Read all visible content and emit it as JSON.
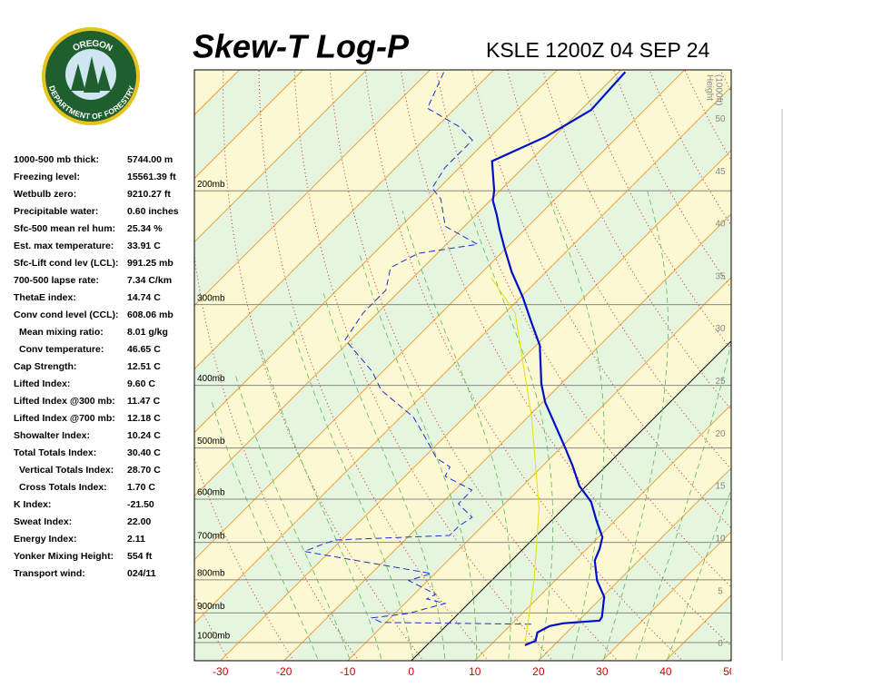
{
  "logo": {
    "top": "OREGON",
    "bottom": "DEPARTMENT OF FORESTRY"
  },
  "indices": {
    "rows": [
      [
        "1000-500 mb thick:",
        "5744.00 m"
      ],
      [
        "Freezing level:",
        "15561.39 ft"
      ],
      [
        "Wetbulb zero:",
        "9210.27 ft"
      ],
      [
        "Precipitable water:",
        "0.60 inches"
      ],
      [
        "Sfc-500 mean rel hum:",
        "25.34 %"
      ],
      [
        "Est. max temperature:",
        "33.91 C"
      ],
      [
        "Sfc-Lift cond lev (LCL):",
        "991.25 mb"
      ],
      [
        "700-500 lapse rate:",
        "7.34 C/km"
      ],
      [
        "ThetaE index:",
        "14.74 C"
      ],
      [
        "Conv cond level (CCL):",
        "608.06 mb"
      ],
      [
        "Mean mixing ratio:",
        "8.01 g/kg"
      ],
      [
        "Conv temperature:",
        "46.65 C"
      ],
      [
        "Cap Strength:",
        "12.51 C"
      ],
      [
        "Lifted Index:",
        "9.60 C"
      ],
      [
        "Lifted Index @300 mb:",
        "11.47 C"
      ],
      [
        "Lifted Index @700 mb:",
        "12.18 C"
      ],
      [
        "Showalter Index:",
        "10.24 C"
      ],
      [
        "Total Totals Index:",
        "30.40 C"
      ],
      [
        "Vertical Totals Index:",
        "28.70 C"
      ],
      [
        "Cross Totals Index:",
        "1.70 C"
      ],
      [
        "K Index:",
        "-21.50"
      ],
      [
        "Sweat Index:",
        "22.00"
      ],
      [
        "Energy Index:",
        "2.11"
      ],
      [
        "Yonker Mixing Height:",
        "554 ft"
      ],
      [
        "Transport wind:",
        "024/11"
      ]
    ]
  },
  "chart_data": {
    "type": "skewt",
    "title": "Skew-T Log-P",
    "subtitle": "KSLE 1200Z 04 SEP 24",
    "xlim": [
      -34.1,
      50.3
    ],
    "xticks": [
      -30,
      -20,
      -10,
      0,
      10,
      20,
      30,
      40,
      50
    ],
    "ylim": [
      1067,
      130
    ],
    "yscale": "log",
    "yticks": [
      {
        "value": 1000,
        "label": "1000mb"
      },
      {
        "value": 900,
        "label": "900mb"
      },
      {
        "value": 800,
        "label": "800mb"
      },
      {
        "value": 700,
        "label": "700mb"
      },
      {
        "value": 600,
        "label": "600mb"
      },
      {
        "value": 500,
        "label": "500mb"
      },
      {
        "value": 400,
        "label": "400mb"
      },
      {
        "value": 300,
        "label": "300mb"
      },
      {
        "value": 200,
        "label": "200mb"
      }
    ],
    "y2label": [
      "Height",
      "(1000ft)"
    ],
    "y2lim": [
      -1.6,
      54.7
    ],
    "y2ticks": [
      0,
      5,
      10,
      15,
      20,
      25,
      30,
      35,
      40,
      45,
      50
    ],
    "series": [
      {
        "color": "#0010c8",
        "style": "solid",
        "pressure": [
          1010,
          994,
          965,
          943,
          934,
          925,
          913,
          850,
          802,
          747,
          716,
          687,
          648,
          606,
          573,
          532,
          495,
          425,
          398,
          347,
          321,
          292,
          267,
          246,
          229,
          218,
          207,
          200,
          180,
          165,
          150,
          131
        ],
        "values": [
          15.4,
          16.4,
          15.4,
          16.3,
          18.0,
          23.3,
          23.1,
          20.3,
          16.6,
          13.1,
          12.0,
          10.6,
          7.1,
          3.3,
          -1.0,
          -5.4,
          -9.9,
          -19.6,
          -23.1,
          -29.4,
          -34.1,
          -39.7,
          -45.4,
          -50.1,
          -54.1,
          -56.7,
          -59.6,
          -60.9,
          -65.9,
          -61.3,
          -58.4,
          -59.0
        ]
      },
      {
        "color": "#2030d0",
        "style": "dashed",
        "pressure": [
          937,
          931,
          916,
          902,
          870,
          856,
          842,
          802,
          782,
          733,
          723,
          705,
          694,
          683,
          661,
          640,
          610,
          581,
          553,
          535,
          518,
          486,
          448,
          407,
          381,
          340,
          309,
          285,
          263,
          250,
          242,
          227,
          206,
          198,
          184,
          167,
          159,
          149,
          130
        ],
        "values": [
          13.1,
          -10.7,
          -12.9,
          -7.9,
          -3.7,
          -7.3,
          -6.6,
          -13.0,
          -10.6,
          -29.9,
          -34.0,
          -32.3,
          -30.9,
          -13.7,
          -13.7,
          -13.0,
          -17.3,
          -17.3,
          -23.7,
          -24.4,
          -28.0,
          -32.3,
          -38.0,
          -47.3,
          -51.6,
          -60.9,
          -62.3,
          -62.3,
          -65.1,
          -63.0,
          -55.1,
          -63.0,
          -68.0,
          -71.1,
          -72.3,
          -72.3,
          -76.6,
          -84.4,
          -87.7
        ]
      },
      {
        "color": "#e8e000",
        "style": "solid",
        "pressure": [
          1010,
          802,
          620,
          448,
          309,
          273
        ],
        "values": [
          15.4,
          6.7,
          -3.9,
          -19.4,
          -38.4,
          -47.6
        ]
      }
    ]
  }
}
